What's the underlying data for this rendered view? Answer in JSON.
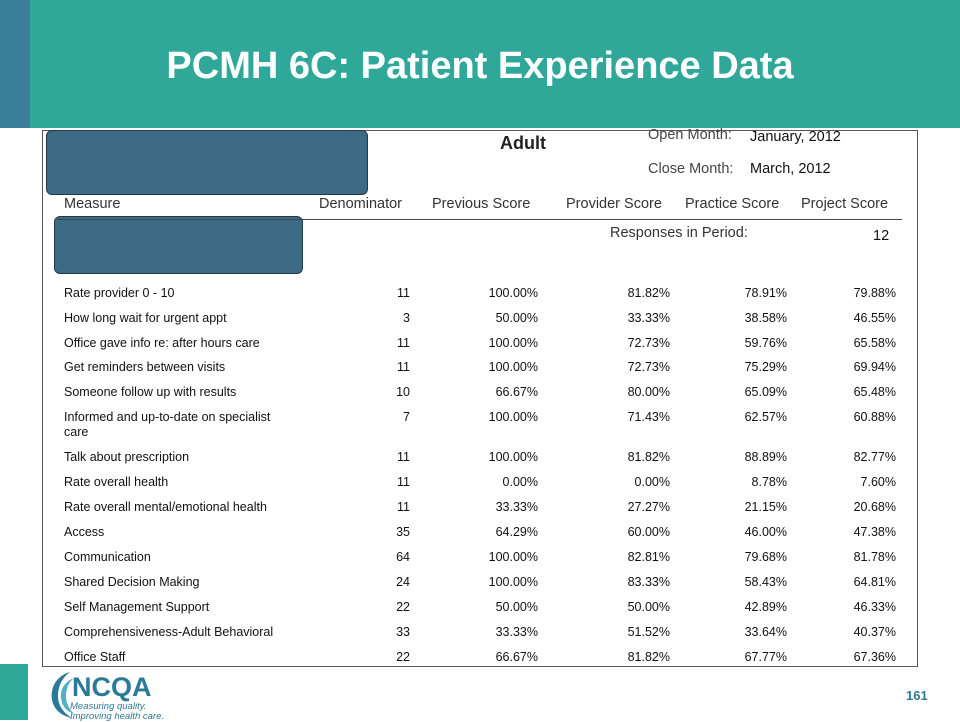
{
  "slide": {
    "title": "PCMH 6C: Patient Experience Data",
    "page_number": "161"
  },
  "report": {
    "title": "Adult",
    "open_month_label": "Open Month:",
    "open_month_value": "January, 2012",
    "close_month_label": "Close Month:",
    "close_month_value": "March, 2012",
    "responses_label": "Responses in Period:",
    "responses_value": "12",
    "columns": [
      "Measure",
      "Denominator",
      "Previous Score",
      "Provider Score",
      "Practice Score",
      "Project Score"
    ],
    "rows": [
      {
        "measure": "Rate provider 0 - 10",
        "denominator": "11",
        "previous": "100.00%",
        "provider": "81.82%",
        "practice": "78.91%",
        "project": "79.88%"
      },
      {
        "measure": "How long wait for urgent appt",
        "denominator": "3",
        "previous": "50.00%",
        "provider": "33.33%",
        "practice": "38.58%",
        "project": "46.55%"
      },
      {
        "measure": "Office gave info re: after hours care",
        "denominator": "11",
        "previous": "100.00%",
        "provider": "72.73%",
        "practice": "59.76%",
        "project": "65.58%"
      },
      {
        "measure": "Get reminders between visits",
        "denominator": "11",
        "previous": "100.00%",
        "provider": "72.73%",
        "practice": "75.29%",
        "project": "69.94%"
      },
      {
        "measure": "Someone follow up with results",
        "denominator": "10",
        "previous": "66.67%",
        "provider": "80.00%",
        "practice": "65.09%",
        "project": "65.48%"
      },
      {
        "measure": "Informed and up-to-date on specialist care",
        "denominator": "7",
        "previous": "100.00%",
        "provider": "71.43%",
        "practice": "62.57%",
        "project": "60.88%"
      },
      {
        "measure": "Talk about prescription",
        "denominator": "11",
        "previous": "100.00%",
        "provider": "81.82%",
        "practice": "88.89%",
        "project": "82.77%"
      },
      {
        "measure": "Rate overall health",
        "denominator": "11",
        "previous": "0.00%",
        "provider": "0.00%",
        "practice": "8.78%",
        "project": "7.60%"
      },
      {
        "measure": "Rate overall mental/emotional health",
        "denominator": "11",
        "previous": "33.33%",
        "provider": "27.27%",
        "practice": "21.15%",
        "project": "20.68%"
      },
      {
        "measure": "Access",
        "denominator": "35",
        "previous": "64.29%",
        "provider": "60.00%",
        "practice": "46.00%",
        "project": "47.38%"
      },
      {
        "measure": "Communication",
        "denominator": "64",
        "previous": "100.00%",
        "provider": "82.81%",
        "practice": "79.68%",
        "project": "81.78%"
      },
      {
        "measure": "Shared Decision Making",
        "denominator": "24",
        "previous": "100.00%",
        "provider": "83.33%",
        "practice": "58.43%",
        "project": "64.81%"
      },
      {
        "measure": "Self Management Support",
        "denominator": "22",
        "previous": "50.00%",
        "provider": "50.00%",
        "practice": "42.89%",
        "project": "46.33%"
      },
      {
        "measure": "Comprehensiveness-Adult Behavioral",
        "denominator": "33",
        "previous": "33.33%",
        "provider": "51.52%",
        "practice": "33.64%",
        "project": "40.37%"
      },
      {
        "measure": "Office Staff",
        "denominator": "22",
        "previous": "66.67%",
        "provider": "81.82%",
        "practice": "67.77%",
        "project": "67.36%"
      }
    ]
  },
  "logo": {
    "name": "NCQA",
    "tagline_1": "Measuring quality.",
    "tagline_2": "Improving health care."
  },
  "colors": {
    "header_teal": "#2fa89a",
    "accent_blue": "#3a7f99",
    "redaction": "#3d6b86",
    "logo_blue": "#2b7a97"
  }
}
